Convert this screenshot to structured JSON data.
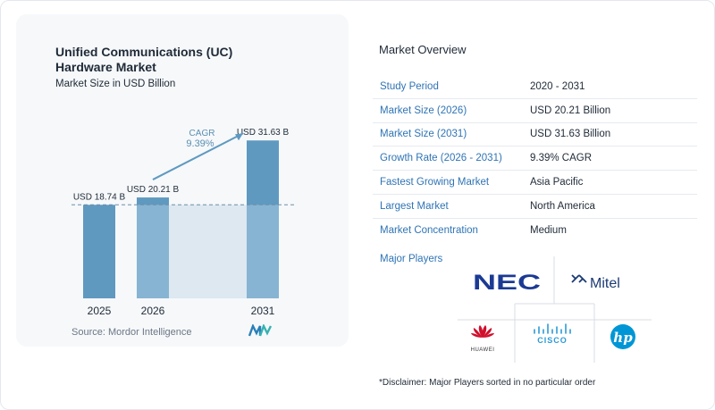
{
  "chart": {
    "title": "Unified Communications (UC) Hardware Market",
    "subtitle": "Market Size in USD Billion",
    "cagr_label": "CAGR",
    "cagr_value": "9.39%",
    "source": "Source: Mordor Intelligence"
  },
  "chart_data": {
    "type": "bar",
    "title": "Unified Communications (UC) Hardware Market",
    "subtitle": "Market Size in USD Billion",
    "categories": [
      "2025",
      "2026",
      "2031"
    ],
    "values": [
      18.74,
      20.21,
      31.63
    ],
    "data_labels": [
      "USD 18.74 B",
      "USD 20.21 B",
      "USD 31.63 B"
    ],
    "annotation": "CAGR 9.39%",
    "ylim": [
      0,
      34
    ],
    "grid": false,
    "colors": {
      "bar": "#5f99c0",
      "bar_light": "#a8cbe0",
      "band": "#dde8f1",
      "arrow": "#5f99c0",
      "cagr": "#5b8fb2"
    }
  },
  "overview": {
    "title": "Market Overview",
    "rows": [
      {
        "label": "Study Period",
        "value": "2020 - 2031"
      },
      {
        "label": "Market Size (2026)",
        "value": "USD 20.21 Billion"
      },
      {
        "label": "Market Size (2031)",
        "value": "USD 31.63 Billion"
      },
      {
        "label": "Growth Rate (2026 - 2031)",
        "value": "9.39% CAGR"
      },
      {
        "label": "Fastest Growing Market",
        "value": "Asia Pacific"
      },
      {
        "label": "Largest Market",
        "value": "North America"
      },
      {
        "label": "Market Concentration",
        "value": "Medium"
      }
    ],
    "players_title": "Major Players",
    "players": [
      {
        "name": "NEC",
        "color": "#1b3a94"
      },
      {
        "name": "Mitel",
        "color": "#1b3a73"
      },
      {
        "name": "HUAWEI",
        "color": "#d0102c"
      },
      {
        "name": "CISCO",
        "color": "#2c9ad6"
      },
      {
        "name": "hp",
        "color": "#0096d6"
      }
    ],
    "disclaimer": "*Disclaimer: Major Players sorted in no particular order"
  }
}
